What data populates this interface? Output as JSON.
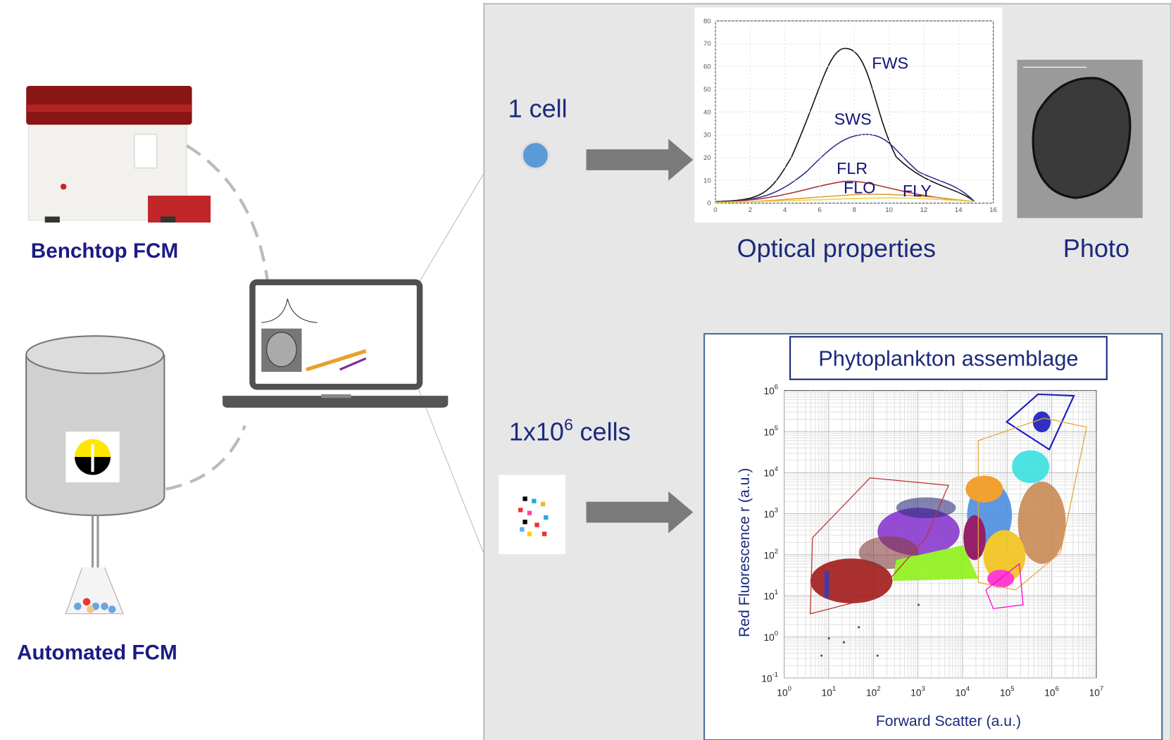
{
  "instruments": {
    "benchtop": "Benchtop FCM",
    "automated": "Automated FCM"
  },
  "single_cell": {
    "label": "1 cell",
    "signal_chart": {
      "curves": [
        "FWS",
        "SWS",
        "FLR",
        "FLO",
        "FLY"
      ],
      "y_ticks": [
        0,
        10,
        20,
        30,
        40,
        50,
        60,
        70,
        80
      ],
      "x_ticks": [
        0,
        2,
        4,
        6,
        8,
        10,
        12,
        14,
        16
      ]
    },
    "outputs": [
      "Optical properties",
      "Photo"
    ]
  },
  "population": {
    "label_base": "1x10",
    "label_exponent": "6",
    "label_suffix": "cells"
  },
  "scatter": {
    "title": "Phytoplankton assemblage",
    "x_label": "Forward Scatter (a.u.)",
    "y_label": "Red Fluorescence r (a.u.)",
    "tick_base": "10",
    "x_tick_exponents": [
      "0",
      "1",
      "2",
      "3",
      "4",
      "5",
      "6",
      "7"
    ],
    "y_tick_exponents": [
      "-1",
      "0",
      "1",
      "2",
      "3",
      "4",
      "5",
      "6"
    ]
  }
}
